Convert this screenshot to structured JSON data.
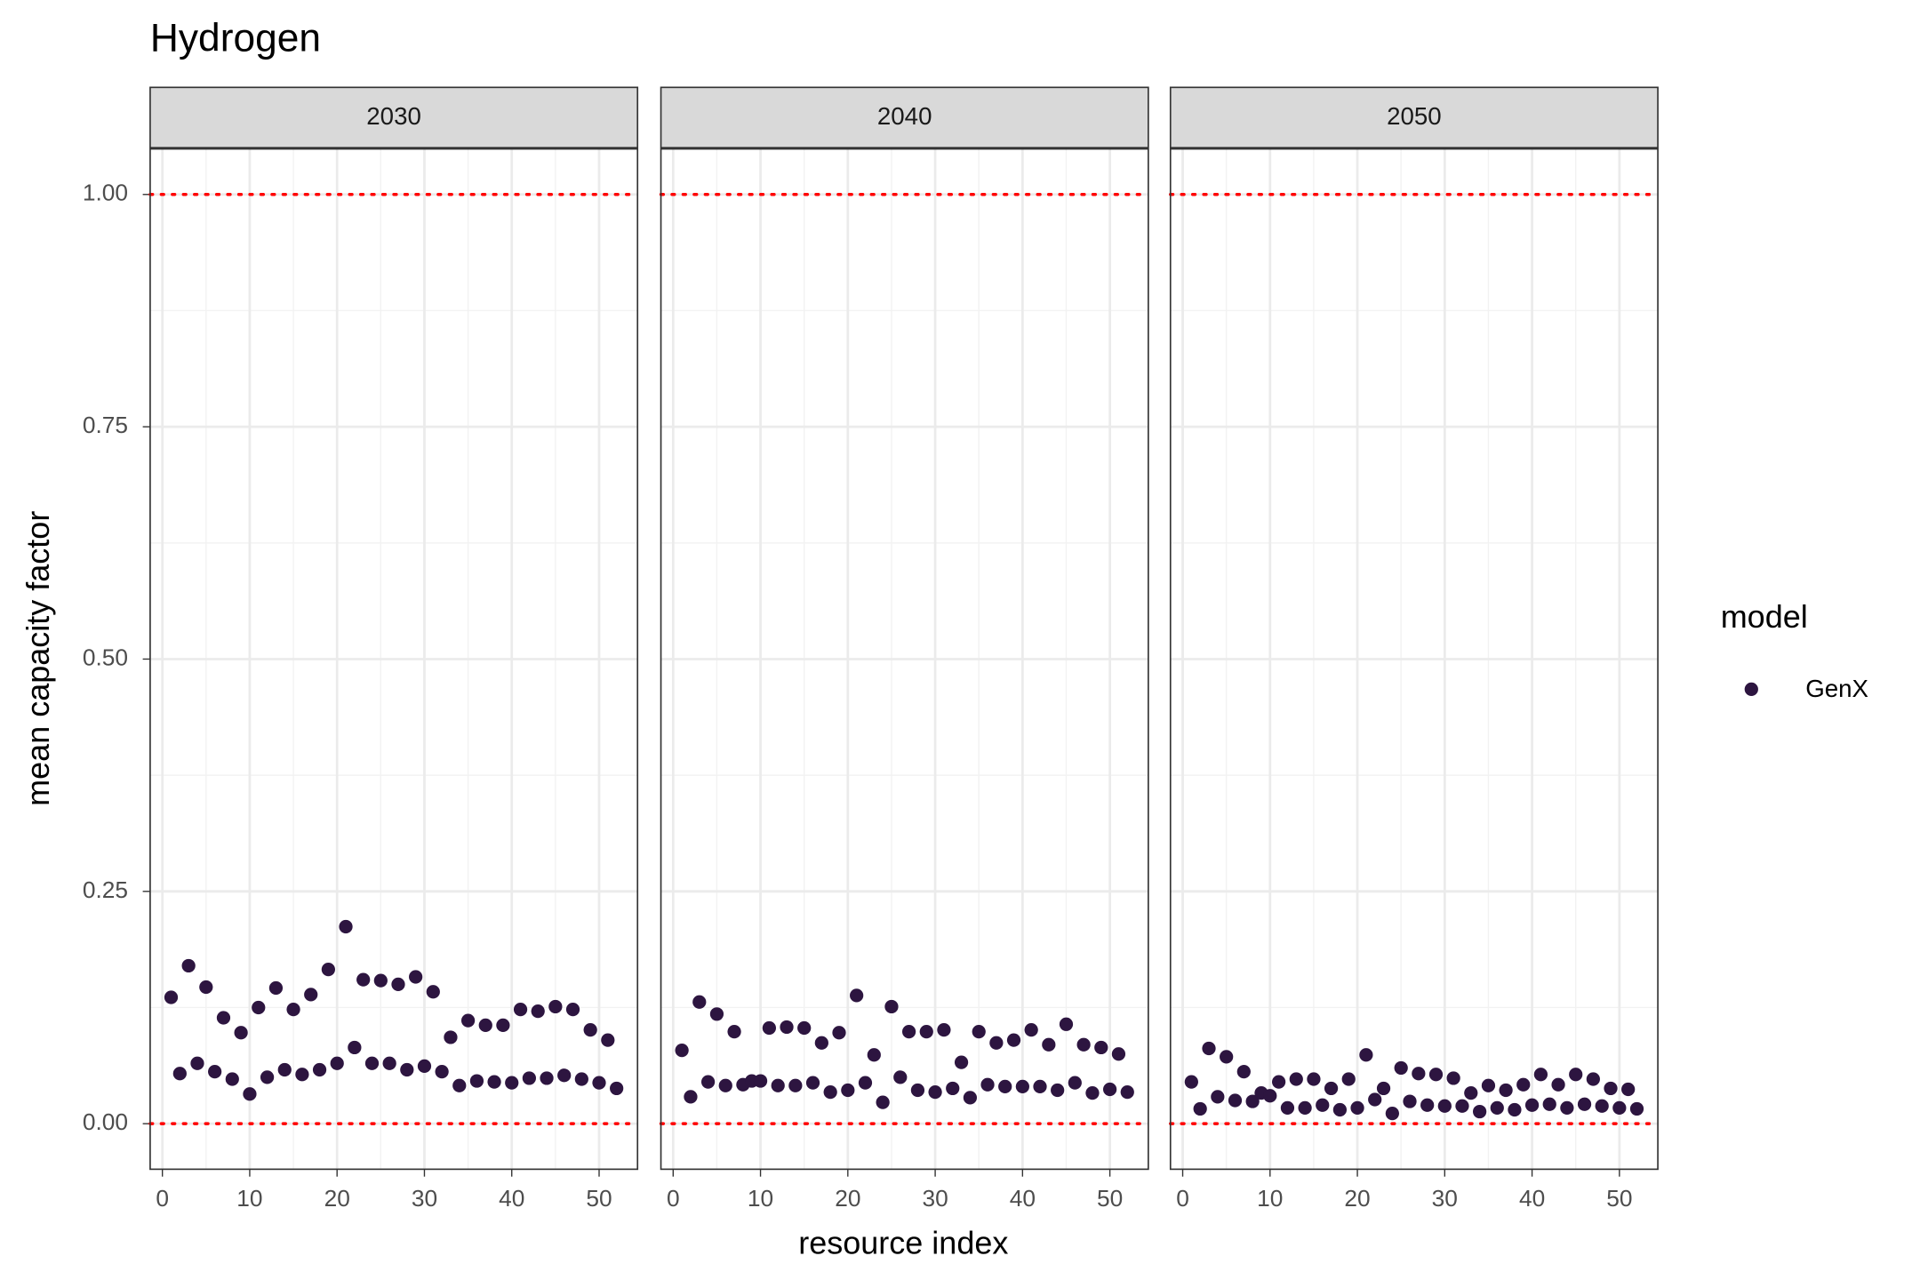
{
  "chart_data": {
    "type": "scatter",
    "title": "Hydrogen",
    "x_label": "resource index",
    "y_label": "mean capacity factor",
    "legend_title": "model",
    "x": [
      1,
      2,
      3,
      4,
      5,
      6,
      7,
      8,
      9,
      10,
      11,
      12,
      13,
      14,
      15,
      16,
      17,
      18,
      19,
      20,
      21,
      22,
      23,
      24,
      25,
      26,
      27,
      28,
      29,
      30,
      31,
      32,
      33,
      34,
      35,
      36,
      37,
      38,
      39,
      40,
      41,
      42,
      43,
      44,
      45,
      46,
      47,
      48,
      49,
      50,
      51,
      52
    ],
    "xlim": [
      -1.4,
      54.4
    ],
    "ylim": [
      -0.049,
      1.049
    ],
    "xticks": [
      0,
      10,
      20,
      30,
      40,
      50
    ],
    "yticks": [
      {
        "value": 0,
        "label": "0.00"
      },
      {
        "value": 0.25,
        "label": "0.25"
      },
      {
        "value": 0.5,
        "label": "0.50"
      },
      {
        "value": 0.75,
        "label": "0.75"
      },
      {
        "value": 1,
        "label": "1.00"
      }
    ],
    "grid": true,
    "hlines": [
      0,
      1
    ],
    "hline_color": "#ff0000",
    "facets": [
      {
        "label": "2030",
        "series": [
          {
            "name": "GenX",
            "color": "#2d1540",
            "values": [
              0.136,
              0.054,
              0.17,
              0.065,
              0.147,
              0.056,
              0.114,
              0.048,
              0.098,
              0.032,
              0.125,
              0.05,
              0.146,
              0.058,
              0.123,
              0.053,
              0.139,
              0.058,
              0.166,
              0.065,
              0.212,
              0.082,
              0.155,
              0.065,
              0.154,
              0.065,
              0.15,
              0.058,
              0.158,
              0.062,
              0.142,
              0.056,
              0.093,
              0.041,
              0.111,
              0.046,
              0.106,
              0.045,
              0.106,
              0.044,
              0.123,
              0.049,
              0.121,
              0.049,
              0.126,
              0.052,
              0.123,
              0.048,
              0.101,
              0.044,
              0.09,
              0.038
            ]
          }
        ]
      },
      {
        "label": "2040",
        "series": [
          {
            "name": "GenX",
            "color": "#2d1540",
            "values": [
              0.079,
              0.029,
              0.131,
              0.045,
              0.118,
              0.041,
              0.099,
              0.042,
              0.046,
              0.046,
              0.103,
              0.041,
              0.104,
              0.041,
              0.103,
              0.044,
              0.087,
              0.034,
              0.098,
              0.036,
              0.138,
              0.044,
              0.074,
              0.023,
              0.126,
              0.05,
              0.099,
              0.036,
              0.099,
              0.034,
              0.101,
              0.038,
              0.066,
              0.028,
              0.099,
              0.042,
              0.087,
              0.04,
              0.09,
              0.04,
              0.101,
              0.04,
              0.085,
              0.036,
              0.107,
              0.044,
              0.085,
              0.033,
              0.082,
              0.037,
              0.075,
              0.034
            ]
          }
        ]
      },
      {
        "label": "2050",
        "series": [
          {
            "name": "GenX",
            "color": "#2d1540",
            "values": [
              0.045,
              0.016,
              0.081,
              0.029,
              0.072,
              0.025,
              0.056,
              0.024,
              0.033,
              0.03,
              0.045,
              0.017,
              0.048,
              0.017,
              0.048,
              0.02,
              0.038,
              0.015,
              0.048,
              0.017,
              0.074,
              0.026,
              0.038,
              0.011,
              0.06,
              0.024,
              0.054,
              0.02,
              0.053,
              0.019,
              0.049,
              0.019,
              0.033,
              0.013,
              0.041,
              0.017,
              0.036,
              0.015,
              0.042,
              0.02,
              0.053,
              0.021,
              0.042,
              0.017,
              0.053,
              0.021,
              0.048,
              0.019,
              0.038,
              0.017,
              0.037,
              0.016
            ]
          }
        ]
      }
    ]
  }
}
